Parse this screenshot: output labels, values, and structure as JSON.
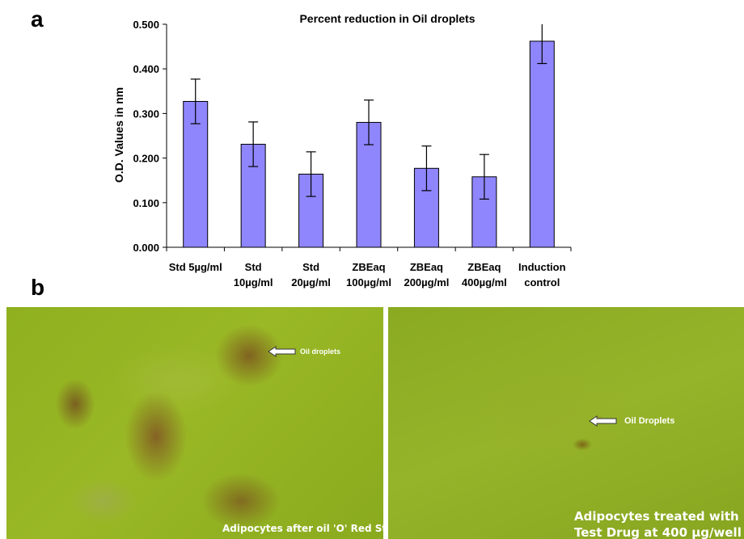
{
  "panel_labels": {
    "a": "a",
    "b": "b"
  },
  "chart_data": {
    "type": "bar",
    "title": "Percent reduction in Oil droplets",
    "ylabel": "O.D. Values in nm",
    "xlabel": "",
    "categories": [
      [
        "Std 5µg/ml"
      ],
      [
        "Std",
        "10µg/ml"
      ],
      [
        "Std",
        "20µg/ml"
      ],
      [
        "ZBEaq",
        "100µg/ml"
      ],
      [
        "ZBEaq",
        "200µg/ml"
      ],
      [
        "ZBEaq",
        "400µg/ml"
      ],
      [
        "Induction",
        "control"
      ]
    ],
    "values": [
      0.327,
      0.231,
      0.164,
      0.28,
      0.177,
      0.158,
      0.462
    ],
    "errors": [
      0.05,
      0.05,
      0.05,
      0.05,
      0.05,
      0.05,
      0.05
    ],
    "ylim": [
      0,
      0.5
    ],
    "yticks": [
      "0.000",
      "0.100",
      "0.200",
      "0.300",
      "0.400",
      "0.500"
    ],
    "bar_color": "#8f86fd",
    "grid": false,
    "legend": "none"
  },
  "micrographs": {
    "left": {
      "arrow_label": "Oil droplets",
      "caption": "Adipocytes after oil 'O' Red Stain"
    },
    "right": {
      "arrow_label": "Oil Droplets",
      "caption_line1": "Adipocytes treated with",
      "caption_line2": "Test Drug at 400 µg/well"
    }
  }
}
